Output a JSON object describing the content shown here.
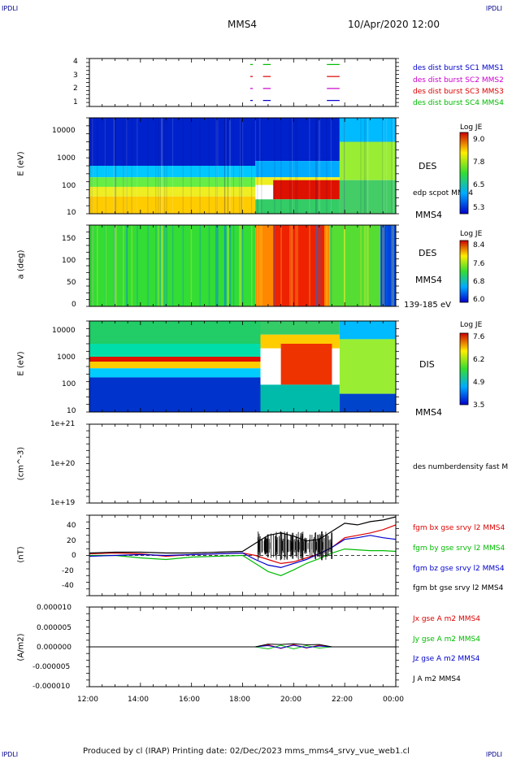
{
  "corners": {
    "tl": "IPDLI",
    "tr": "IPDLI",
    "bl": "IPDLI",
    "br": "IPDLI"
  },
  "header": {
    "spacecraft": "MMS4",
    "date": "10/Apr/2020 12:00"
  },
  "footer": {
    "text": "Produced by cl (IRAP)   Printing date: 02/Dec/2023   mms_mms4_srvy_vue_web1.cl"
  },
  "colors": {
    "c1": "#0000cc",
    "c2": "#cc00cc",
    "c3": "#dd0000",
    "c4": "#00bb00",
    "black": "#000000"
  },
  "time_axis": {
    "ticks": [
      "12:00",
      "14:00",
      "16:00",
      "18:00",
      "20:00",
      "22:00",
      "00:00"
    ]
  },
  "panels": {
    "avail": {
      "yticks": [
        "1",
        "2",
        "3",
        "4"
      ],
      "legend": [
        "des dist burst SC1 MMS1",
        "des dist burst SC2 MMS2",
        "des dist burst SC3 MMS3",
        "des dist burst SC4 MMS4"
      ]
    },
    "des_e": {
      "ylabel": "E (eV)",
      "yticks": [
        "10",
        "100",
        "1000",
        "10000"
      ],
      "title": "DES",
      "overlay": "edp scpot MMS4",
      "sc": "MMS4",
      "cbar": {
        "title": "Log JE",
        "ticks": [
          "9.0",
          "7.8",
          "6.5",
          "5.3"
        ]
      }
    },
    "des_pa": {
      "ylabel": "a (deg)",
      "yticks": [
        "0",
        "50",
        "100",
        "150"
      ],
      "title": "DES",
      "sc": "MMS4",
      "range": "139-185 eV",
      "cbar": {
        "title": "Log JE",
        "ticks": [
          "8.4",
          "7.6",
          "6.8",
          "6.0"
        ]
      }
    },
    "dis_e": {
      "ylabel": "E (eV)",
      "yticks": [
        "10",
        "100",
        "1000",
        "10000"
      ],
      "title": "DIS",
      "sc": "MMS4",
      "cbar": {
        "title": "Log JE",
        "ticks": [
          "7.6",
          "6.2",
          "4.9",
          "3.5"
        ]
      }
    },
    "density": {
      "ylabel": "(cm^-3)",
      "yticks": [
        "1e+19",
        "1e+20",
        "1e+21"
      ],
      "legend": "des numberdensity fast M"
    },
    "field": {
      "ylabel": "(nT)",
      "yticks": [
        "-40",
        "-20",
        "0",
        "20",
        "40"
      ],
      "legend": [
        "fgm bx gse srvy l2 MMS4",
        "fgm by gse srvy l2 MMS4",
        "fgm bz gse srvy l2 MMS4",
        "fgm bt gse srvy l2 MMS4"
      ]
    },
    "current": {
      "ylabel": "(A/m2)",
      "yticks": [
        "-0.000010",
        "-0.000005",
        "0.000000",
        "0.000005",
        "0.000010"
      ],
      "legend": [
        "Jx gse A m2 MMS4",
        "Jy gse A m2 MMS4",
        "Jz gse A m2 MMS4",
        "J A m2 MMS4"
      ]
    }
  },
  "chart_data": [
    {
      "type": "line",
      "title": "",
      "ylabel": "",
      "ylim": [
        0.5,
        4.5
      ],
      "series": [
        {
          "name": "des dist burst SC1 MMS1",
          "y": 1,
          "segments": [
            [
              18.3,
              18.4
            ],
            [
              18.8,
              19.1
            ],
            [
              21.3,
              21.8
            ]
          ]
        },
        {
          "name": "des dist burst SC2 MMS2",
          "y": 2,
          "segments": [
            [
              18.3,
              18.4
            ],
            [
              18.8,
              19.1
            ],
            [
              21.3,
              21.8
            ]
          ]
        },
        {
          "name": "des dist burst SC3 MMS3",
          "y": 3,
          "segments": [
            [
              18.3,
              18.4
            ],
            [
              18.8,
              19.1
            ],
            [
              21.3,
              21.8
            ]
          ]
        },
        {
          "name": "des dist burst SC4 MMS4",
          "y": 4,
          "segments": [
            [
              18.3,
              18.4
            ],
            [
              18.8,
              19.1
            ],
            [
              21.3,
              21.8
            ]
          ]
        }
      ]
    },
    {
      "type": "heatmap",
      "ylabel": "E (eV)",
      "yscale": "log",
      "ylim": [
        10,
        20000
      ],
      "zlim": [
        5.3,
        9.0
      ],
      "zlabel": "Log JE"
    },
    {
      "type": "heatmap",
      "ylabel": "a (deg)",
      "ylim": [
        0,
        180
      ],
      "zlim": [
        6.0,
        8.4
      ],
      "zlabel": "Log JE"
    },
    {
      "type": "heatmap",
      "ylabel": "E (eV)",
      "yscale": "log",
      "ylim": [
        10,
        20000
      ],
      "zlim": [
        3.5,
        7.6
      ],
      "zlabel": "Log JE"
    },
    {
      "type": "line",
      "ylabel": "(nT)",
      "ylim": [
        -50,
        50
      ],
      "x_unit": "hours",
      "series": [
        {
          "name": "fgm bx gse srvy l2 MMS4",
          "color": "#dd0000",
          "x": [
            12,
            13,
            14,
            15,
            16,
            17,
            18,
            18.5,
            19,
            19.5,
            20,
            20.5,
            21,
            21.5,
            22,
            22.5,
            23,
            23.5,
            24
          ],
          "y": [
            2,
            3,
            2,
            -1,
            1,
            2,
            3,
            0,
            -5,
            -10,
            -8,
            -3,
            2,
            10,
            22,
            25,
            28,
            32,
            38
          ]
        },
        {
          "name": "fgm by gse srvy l2 MMS4",
          "color": "#00bb00",
          "x": [
            12,
            13,
            14,
            15,
            16,
            17,
            18,
            18.5,
            19,
            19.5,
            20,
            20.5,
            21,
            21.5,
            22,
            22.5,
            23,
            23.5,
            24
          ],
          "y": [
            0,
            0,
            -3,
            -5,
            -2,
            -1,
            0,
            -10,
            -20,
            -25,
            -18,
            -10,
            -4,
            3,
            8,
            7,
            6,
            6,
            5
          ]
        },
        {
          "name": "fgm bz gse srvy l2 MMS4",
          "color": "#0000cc",
          "x": [
            12,
            13,
            14,
            15,
            16,
            17,
            18,
            18.5,
            19,
            19.5,
            20,
            20.5,
            21,
            21.5,
            22,
            22.5,
            23,
            23.5,
            24
          ],
          "y": [
            -1,
            0,
            1,
            0,
            1,
            2,
            3,
            -5,
            -12,
            -15,
            -10,
            -5,
            2,
            10,
            20,
            22,
            25,
            22,
            20
          ]
        },
        {
          "name": "fgm bt gse srvy l2 MMS4",
          "color": "#000000",
          "x": [
            12,
            13,
            14,
            15,
            16,
            17,
            18,
            18.5,
            19,
            19.5,
            20,
            20.5,
            21,
            21.5,
            22,
            22.5,
            23,
            23.5,
            24
          ],
          "y": [
            3,
            4,
            4,
            3,
            3,
            4,
            5,
            15,
            25,
            28,
            24,
            18,
            20,
            30,
            40,
            38,
            42,
            44,
            48
          ]
        }
      ]
    },
    {
      "type": "line",
      "ylabel": "(A/m2)",
      "ylim": [
        -1e-05,
        1e-05
      ],
      "series": [
        {
          "name": "Jx gse A m2 MMS4",
          "color": "#dd0000",
          "x": [
            12,
            18.5,
            19,
            19.5,
            20,
            20.5,
            21,
            21.5,
            24
          ],
          "y": [
            0,
            0,
            5e-07,
            -4e-07,
            6e-07,
            -3e-07,
            4e-07,
            0,
            0
          ]
        },
        {
          "name": "Jy gse A m2 MMS4",
          "color": "#00bb00",
          "x": [
            12,
            18.5,
            19,
            19.5,
            20,
            20.5,
            21,
            21.5,
            24
          ],
          "y": [
            0,
            0,
            -5e-07,
            4e-07,
            -5e-07,
            3e-07,
            -3e-07,
            0,
            0
          ]
        },
        {
          "name": "Jz gse A m2 MMS4",
          "color": "#0000cc",
          "x": [
            12,
            18.5,
            19,
            19.5,
            20,
            20.5,
            21,
            21.5,
            24
          ],
          "y": [
            0,
            0,
            3e-07,
            -3e-07,
            4e-07,
            -2e-07,
            2e-07,
            0,
            0
          ]
        },
        {
          "name": "J A m2 MMS4",
          "color": "#000000",
          "x": [
            12,
            18.5,
            19,
            19.5,
            20,
            20.5,
            21,
            21.5,
            24
          ],
          "y": [
            0,
            0,
            7e-07,
            6e-07,
            8e-07,
            5e-07,
            6e-07,
            0,
            0
          ]
        }
      ]
    }
  ]
}
